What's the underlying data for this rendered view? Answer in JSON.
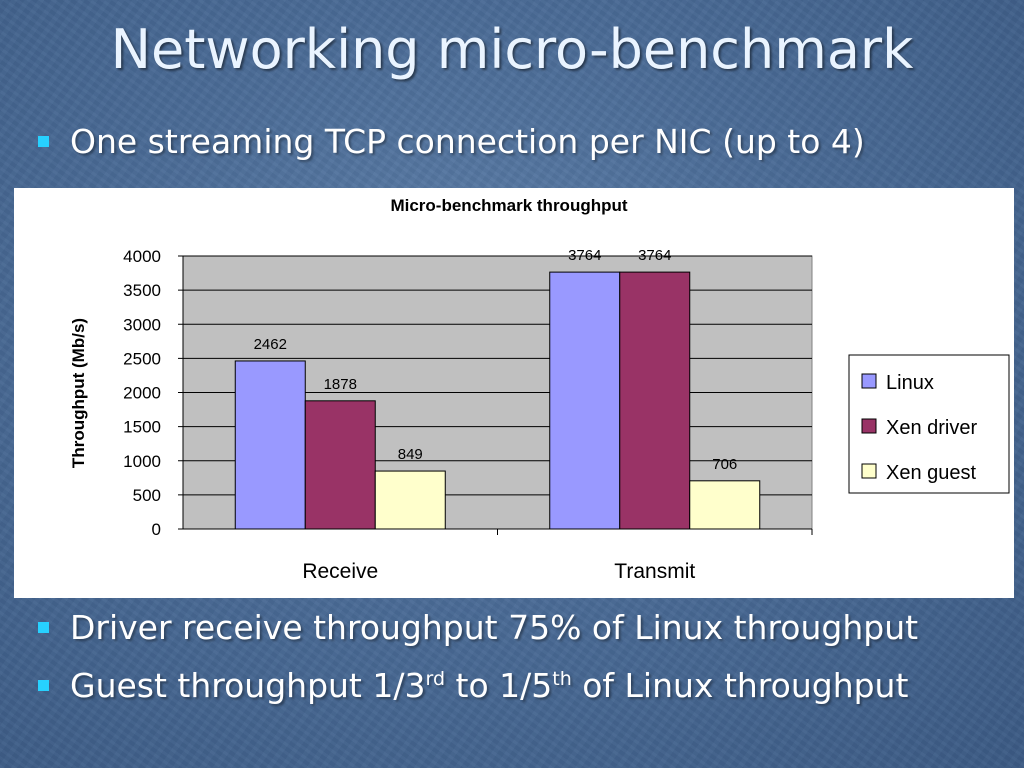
{
  "slide": {
    "title": "Networking micro-benchmark",
    "bullet_color": "#27d1ff",
    "bullets": [
      {
        "text": "One streaming TCP connection per NIC (up to 4)"
      },
      {
        "text": "Driver receive throughput 75% of Linux throughput"
      },
      {
        "pre": "Guest throughput 1/3",
        "sup1": "rd",
        "mid": " to 1/5",
        "sup2": "th",
        "post": " of Linux throughput"
      }
    ]
  },
  "chart_data": {
    "type": "bar",
    "title": "Micro-benchmark throughput",
    "xlabel": "",
    "ylabel": "Throughput (Mb/s)",
    "categories": [
      "Receive",
      "Transmit"
    ],
    "ylim": [
      0,
      4000
    ],
    "yticks": [
      0,
      500,
      1000,
      1500,
      2000,
      2500,
      3000,
      3500,
      4000
    ],
    "grid": true,
    "legend_position": "right",
    "series": [
      {
        "name": "Linux",
        "color": "#9999ff",
        "values": [
          2462,
          3764
        ]
      },
      {
        "name": "Xen driver",
        "color": "#993366",
        "values": [
          1878,
          3764
        ]
      },
      {
        "name": "Xen guest",
        "color": "#ffffcc",
        "values": [
          849,
          706
        ]
      }
    ]
  }
}
